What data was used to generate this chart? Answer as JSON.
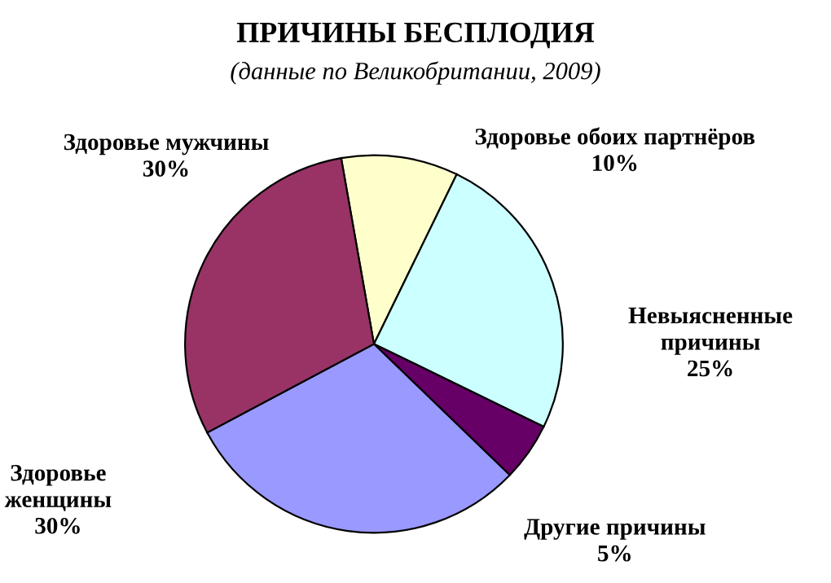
{
  "chart_data": {
    "type": "pie",
    "title": "ПРИЧИНЫ БЕСПЛОДИЯ",
    "subtitle": "(данные по Великобритании, 2009)",
    "categories": [
      "Здоровье обоих партнёров",
      "Невыясненные причины",
      "Другие причины",
      "Здоровье женщины",
      "Здоровье мужчины"
    ],
    "values": [
      10,
      25,
      5,
      30,
      30
    ],
    "value_labels": [
      "10%",
      "25%",
      "5%",
      "30%",
      "30%"
    ],
    "colors": [
      "#ffffcc",
      "#ccffff",
      "#660066",
      "#9999ff",
      "#993366"
    ],
    "legend": false
  }
}
